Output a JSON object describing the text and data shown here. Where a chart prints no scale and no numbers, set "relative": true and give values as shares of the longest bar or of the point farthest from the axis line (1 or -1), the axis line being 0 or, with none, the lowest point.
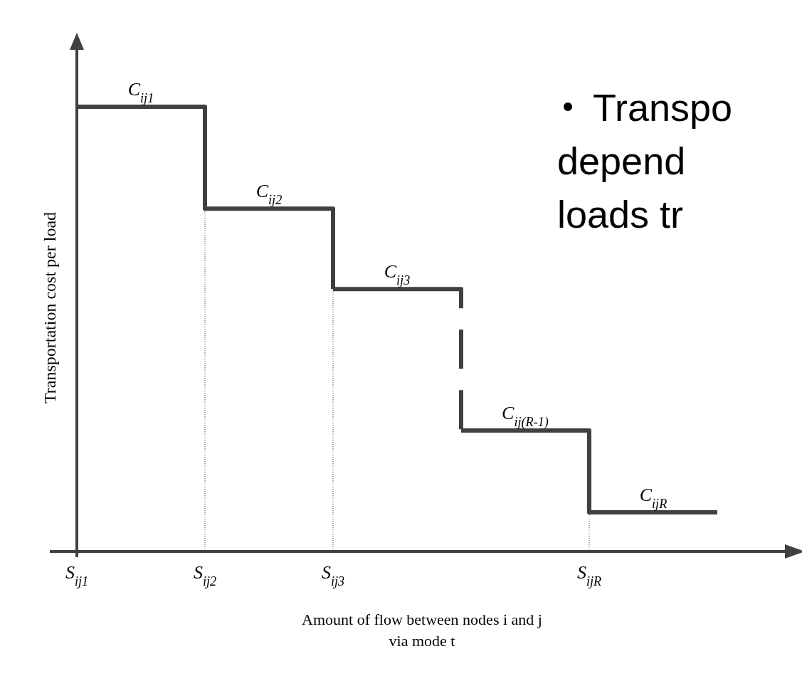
{
  "chart_data": {
    "type": "step",
    "relative": true,
    "xlabel": "Amount of flow between nodes i and j via mode t",
    "ylabel": "Transportation cost per load",
    "categories": [
      "S$_{ij1}$",
      "S$_{ij2}$",
      "S$_{ij3}$",
      null,
      "S$_{ijR}$",
      null
    ],
    "series": [
      {
        "color": "#404040",
        "line_style": "solid",
        "values": [
          1,
          0.771,
          0.59,
          null,
          null,
          null
        ]
      },
      {
        "color": "#404040",
        "line_style": "dashed",
        "values": [
          null,
          null,
          0.59,
          0.272,
          null,
          null
        ]
      },
      {
        "color": "#404040",
        "line_style": "solid",
        "values": [
          null,
          null,
          null,
          0.272,
          0.088,
          0.088
        ]
      }
    ],
    "ref_lines": [
      {
        "axis": "x",
        "value": "S$_{ij2}$",
        "line_style": "dotted"
      },
      {
        "axis": "x",
        "value": "S$_{ij3}$",
        "line_style": "dotted"
      },
      {
        "axis": "x",
        "value": "S$_{ijR}$",
        "line_style": "dotted"
      }
    ],
    "annotations": [
      {
        "text": "C$_{ij1}$",
        "y": 1
      },
      {
        "text": "C$_{ij2}$",
        "y": 0.771
      },
      {
        "text": "C$_{ij3}$",
        "y": 0.59
      },
      {
        "text": "C$_{ij(R-1)}$",
        "y": 0.272
      },
      {
        "text": "C$_{ijR}$",
        "y": 0.088
      },
      "Transpo\ndepend\nloads tr"
    ]
  }
}
